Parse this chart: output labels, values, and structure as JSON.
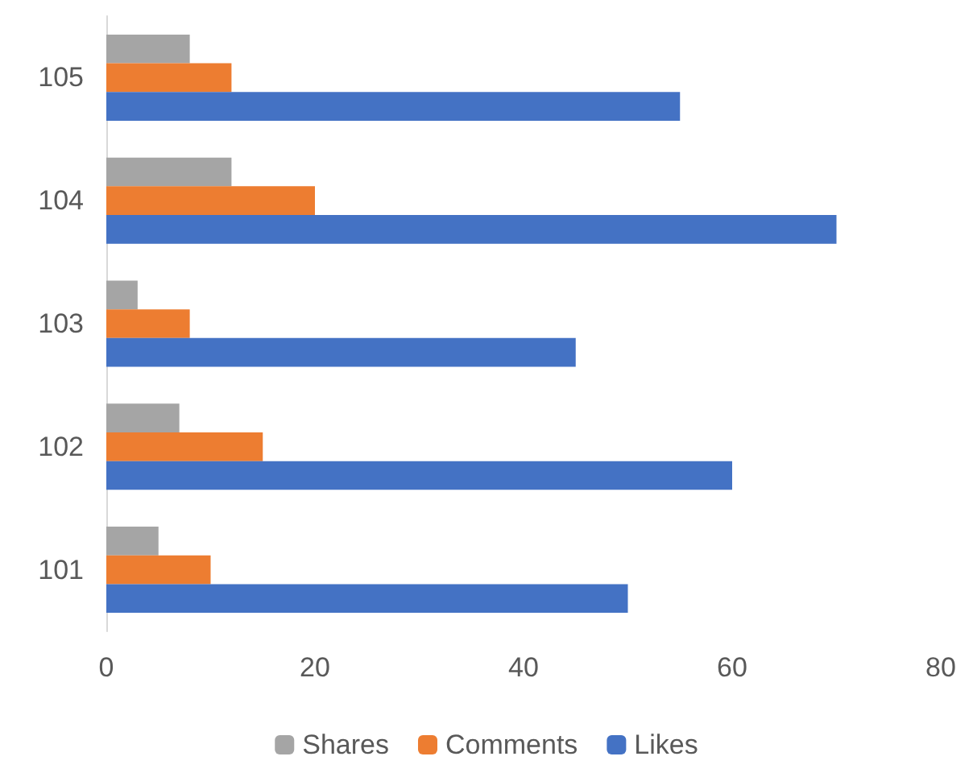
{
  "chart_data": {
    "type": "bar",
    "orientation": "horizontal",
    "categories": [
      "105",
      "104",
      "103",
      "102",
      "101"
    ],
    "series": [
      {
        "name": "Shares",
        "color": "#a5a5a5",
        "values": [
          8,
          12,
          3,
          7,
          5
        ]
      },
      {
        "name": "Comments",
        "color": "#ed7d31",
        "values": [
          12,
          20,
          8,
          15,
          10
        ]
      },
      {
        "name": "Likes",
        "color": "#4472c4",
        "values": [
          55,
          70,
          45,
          60,
          50
        ]
      }
    ],
    "xlim": [
      0,
      80
    ],
    "xticks": [
      0,
      20,
      40,
      60,
      80
    ],
    "grid": false,
    "legend": "bottom"
  }
}
